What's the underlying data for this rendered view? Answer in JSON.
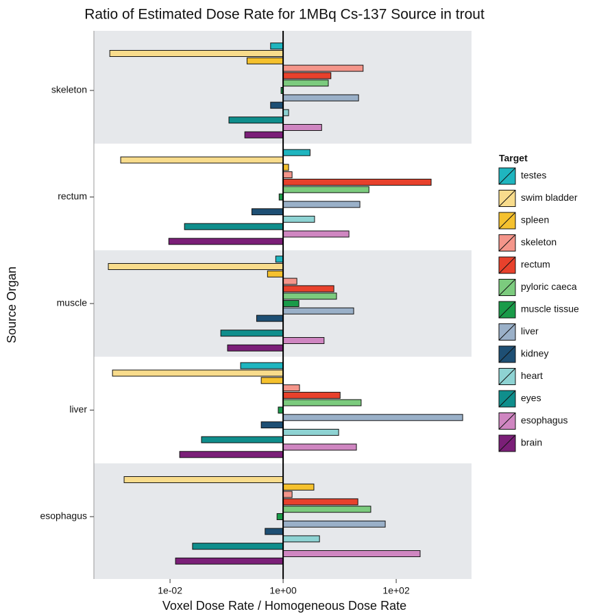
{
  "chart_data": {
    "type": "barh",
    "title": "Ratio of Estimated Dose Rate for 1MBq Cs-137 Source in trout",
    "x_label": "Voxel Dose Rate / Homogeneous Dose Rate",
    "y_label": "Source Organ",
    "legend_title": "Target",
    "legend_position": "right",
    "log_x": true,
    "categories": [
      "skeleton",
      "rectum",
      "muscle",
      "liver",
      "esophagus"
    ],
    "xlim": [
      0.00045,
      2150
    ],
    "xticks": [
      {
        "value": 0.01,
        "label": "1e-02"
      },
      {
        "value": 1,
        "label": "1e+00"
      },
      {
        "value": 100,
        "label": "1e+02"
      }
    ],
    "series": [
      {
        "name": "testes",
        "color": "#1fb5bf",
        "values": [
          0.6,
          3,
          0.74,
          0.177,
          null
        ]
      },
      {
        "name": "swim bladder",
        "color": "#f8dc8c",
        "values": [
          0.00086,
          0.00134,
          0.00081,
          0.00096,
          0.00154
        ]
      },
      {
        "name": "spleen",
        "color": "#f5c12e",
        "values": [
          0.23,
          1.25,
          0.53,
          0.41,
          3.5
        ]
      },
      {
        "name": "skeleton",
        "color": "#f4958a",
        "values": [
          26,
          1.44,
          1.75,
          1.95,
          1.44
        ]
      },
      {
        "name": "rectum",
        "color": "#e8412c",
        "values": [
          7,
          415,
          7.9,
          10.2,
          21
        ]
      },
      {
        "name": "pyloric caeca",
        "color": "#7ccb7e",
        "values": [
          6.3,
          33,
          8.8,
          24,
          35.5
        ]
      },
      {
        "name": "muscle tissue",
        "color": "#1a9b49",
        "values": [
          0.92,
          0.85,
          1.9,
          0.82,
          0.78
        ]
      },
      {
        "name": "liver",
        "color": "#9ab0c8",
        "values": [
          21.6,
          22.8,
          17.7,
          1500,
          64
        ]
      },
      {
        "name": "kidney",
        "color": "#1e4f74",
        "values": [
          0.6,
          0.28,
          0.34,
          0.41,
          0.48
        ]
      },
      {
        "name": "heart",
        "color": "#8ed3d3",
        "values": [
          1.25,
          3.6,
          null,
          9.6,
          4.4
        ]
      },
      {
        "name": "eyes",
        "color": "#0f8e8c",
        "values": [
          0.11,
          0.018,
          0.079,
          0.036,
          0.025
        ]
      },
      {
        "name": "esophagus",
        "color": "#cf86c1",
        "values": [
          4.8,
          14.6,
          5.3,
          19.8,
          265
        ]
      },
      {
        "name": "brain",
        "color": "#7b1f78",
        "values": [
          0.21,
          0.0095,
          0.104,
          0.0148,
          0.0125
        ]
      }
    ]
  }
}
